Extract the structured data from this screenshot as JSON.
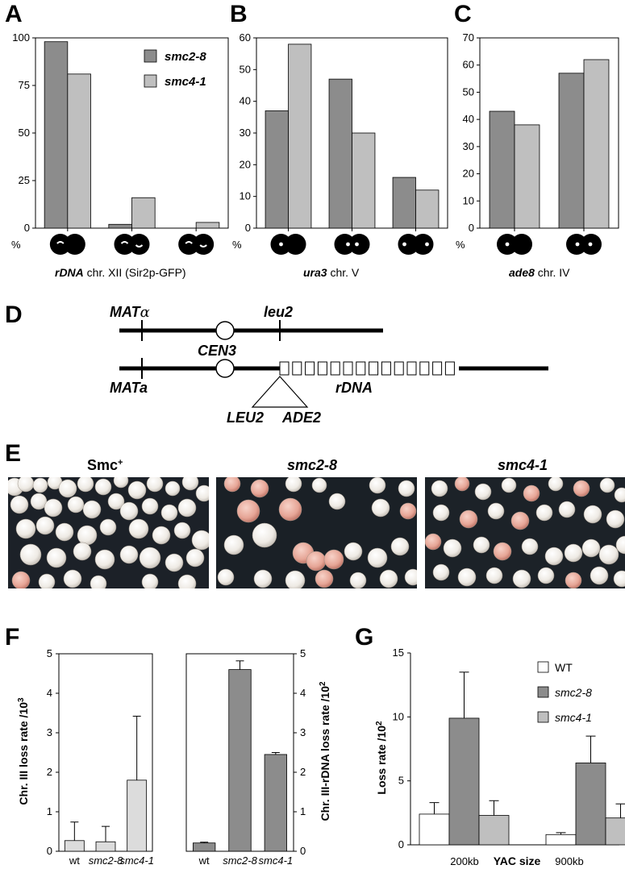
{
  "panels": {
    "A": "A",
    "B": "B",
    "C": "C",
    "D": "D",
    "E": "E",
    "F": "F",
    "G": "G"
  },
  "legend_abc": {
    "s1": "smc2-8",
    "s2": "smc4-1"
  },
  "captions": {
    "A": {
      "gene": "rDNA",
      "rest": " chr. XII (Sir2p-GFP)"
    },
    "B": {
      "gene": "ura3",
      "rest": " chr. V"
    },
    "C": {
      "gene": "ade8",
      "rest": " chr. IV"
    }
  },
  "percent_sign": "%",
  "colors": {
    "dark": "#8c8c8c",
    "light": "#bfbfbf",
    "vlight": "#dcdcdc",
    "white": "#ffffff"
  },
  "diagram": {
    "mat_alpha_base": "MAT",
    "mat_alpha_greek": "α",
    "leu2": "leu2",
    "cen3": "CEN3",
    "mat_a": "MATa",
    "rdna": "rDNA",
    "LEU2": "LEU2",
    "ADE2": "ADE2",
    "repeat_count": 14
  },
  "photos": {
    "h1_base": "Smc",
    "h1_sup": "+",
    "h2": "smc2-8",
    "h3": "smc4-1"
  },
  "chart_data": [
    {
      "panel": "A",
      "type": "bar",
      "categories": [
        "",
        "",
        ""
      ],
      "series": [
        {
          "name": "smc2-8",
          "values": [
            98,
            2,
            0
          ]
        },
        {
          "name": "smc4-1",
          "values": [
            81,
            16,
            3
          ]
        }
      ],
      "ylim": [
        0,
        100
      ],
      "yticks": [
        "0",
        "25",
        "50",
        "75",
        "100"
      ],
      "xlabel": "rDNA chr. XII (Sir2p-GFP)",
      "legend": "top-right"
    },
    {
      "panel": "B",
      "type": "bar",
      "categories": [
        "",
        "",
        ""
      ],
      "series": [
        {
          "name": "smc2-8",
          "values": [
            37,
            47,
            16
          ]
        },
        {
          "name": "smc4-1",
          "values": [
            58,
            30,
            12
          ]
        }
      ],
      "ylim": [
        0,
        60
      ],
      "yticks": [
        "0",
        "10",
        "20",
        "30",
        "40",
        "50",
        "60"
      ],
      "xlabel": "ura3 chr. V"
    },
    {
      "panel": "C",
      "type": "bar",
      "categories": [
        "",
        ""
      ],
      "series": [
        {
          "name": "smc2-8",
          "values": [
            43,
            57
          ]
        },
        {
          "name": "smc4-1",
          "values": [
            38,
            62
          ]
        }
      ],
      "ylim": [
        0,
        70
      ],
      "yticks": [
        "0",
        "10",
        "20",
        "30",
        "40",
        "50",
        "60",
        "70"
      ],
      "xlabel": "ade8 chr. IV"
    },
    {
      "panel": "F-left",
      "type": "bar",
      "categories": [
        "wt",
        "smc2-8",
        "smc4-1"
      ],
      "values": [
        0.27,
        0.24,
        1.8
      ],
      "errors": [
        0.47,
        0.39,
        1.62
      ],
      "ylim": [
        0,
        5
      ],
      "yticks": [
        "0",
        "1",
        "2",
        "3",
        "4",
        "5"
      ],
      "ylabel": "Chr. III loss rate /10",
      "ylabel_sup": "3"
    },
    {
      "panel": "F-right",
      "type": "bar",
      "categories": [
        "wt",
        "smc2-8",
        "smc4-1"
      ],
      "values": [
        0.21,
        4.6,
        2.45
      ],
      "errors": [
        0.02,
        0.22,
        0.05
      ],
      "ylim": [
        0,
        5
      ],
      "yticks": [
        "0",
        "1",
        "2",
        "3",
        "4",
        "5"
      ],
      "ylabel": "Chr. III-rDNA loss rate /10",
      "ylabel_sup": "2"
    },
    {
      "panel": "G",
      "type": "bar",
      "categories": [
        "200kb",
        "900kb"
      ],
      "series": [
        {
          "name": "WT",
          "values": [
            2.4,
            0.8
          ],
          "errors": [
            0.9,
            0.15
          ]
        },
        {
          "name": "smc2-8",
          "values": [
            9.9,
            6.4
          ],
          "errors": [
            3.6,
            2.1
          ]
        },
        {
          "name": "smc4-1",
          "values": [
            2.3,
            2.1
          ],
          "errors": [
            1.15,
            1.1
          ]
        }
      ],
      "ylim": [
        0,
        15
      ],
      "yticks": [
        "0",
        "5",
        "10",
        "15"
      ],
      "ylabel": "Loss rate /10",
      "ylabel_sup": "2",
      "xlabel": "YAC size",
      "legend": "top-right"
    }
  ]
}
